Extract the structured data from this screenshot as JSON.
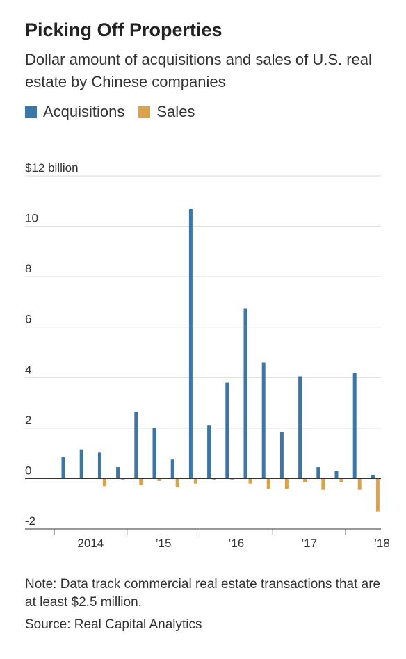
{
  "title": "Picking Off Properties",
  "subtitle": "Dollar amount of acquisitions and sales of U.S. real estate by Chinese companies",
  "legend": {
    "acquisitions": "Acquisitions",
    "sales": "Sales"
  },
  "colors": {
    "acquisitions": "#3a76a8",
    "sales": "#dca24a",
    "grid": "#d9d9d9",
    "axis": "#333333"
  },
  "note": "Note: Data track commercial real estate transactions that are at least $2.5 million.",
  "source": "Source: Real Capital Analytics",
  "chart_data": {
    "type": "bar",
    "categories": [
      "2014 Q1",
      "2014 Q2",
      "2014 Q3",
      "2014 Q4",
      "2015 Q1",
      "2015 Q2",
      "2015 Q3",
      "2015 Q4",
      "2016 Q1",
      "2016 Q2",
      "2016 Q3",
      "2016 Q4",
      "2017 Q1",
      "2017 Q2",
      "2017 Q3",
      "2017 Q4",
      "2018 Q1",
      "2018 Q2"
    ],
    "series": [
      {
        "name": "Acquisitions",
        "values": [
          0.85,
          1.15,
          1.05,
          0.45,
          2.65,
          2.0,
          0.75,
          10.7,
          2.1,
          3.8,
          6.75,
          4.6,
          1.85,
          4.05,
          0.45,
          0.3,
          4.2,
          0.15
        ]
      },
      {
        "name": "Sales",
        "values": [
          0,
          0,
          -0.3,
          -0.05,
          -0.25,
          -0.1,
          -0.35,
          -0.2,
          -0.05,
          -0.05,
          -0.2,
          -0.4,
          -0.4,
          -0.15,
          -0.45,
          -0.15,
          -0.45,
          -1.3
        ]
      }
    ],
    "ylim": [
      -2,
      12
    ],
    "yticks": [
      -2,
      0,
      2,
      4,
      6,
      8,
      10,
      12
    ],
    "ytick_labels": [
      "-2",
      "0",
      "2",
      "4",
      "6",
      "8",
      "10",
      "$12 billion"
    ],
    "xtick_labels": [
      "2014",
      "’15",
      "’16",
      "’17",
      "’18"
    ],
    "grid": true
  }
}
